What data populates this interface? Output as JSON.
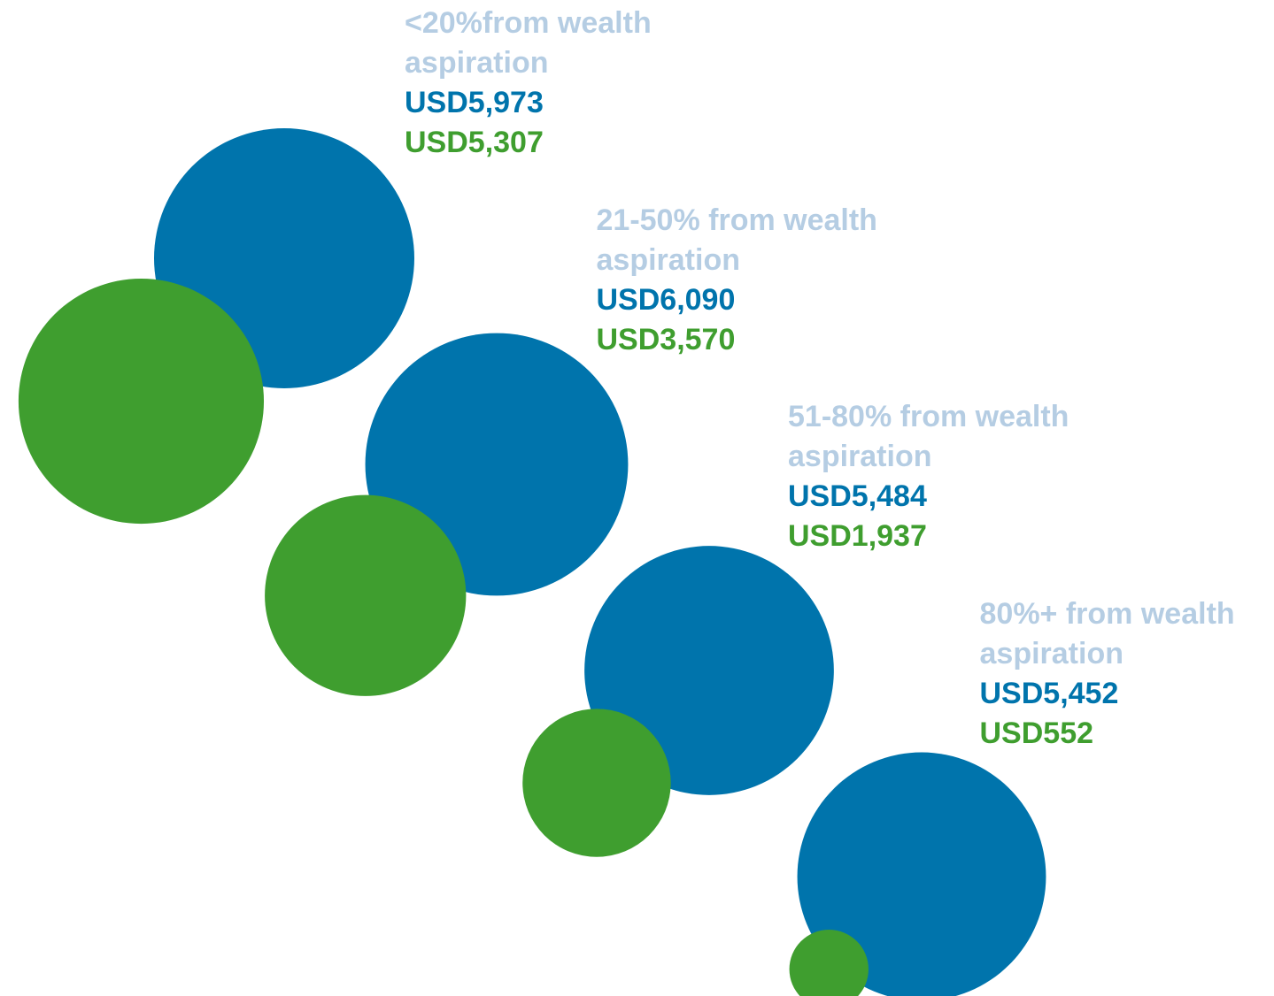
{
  "chart_data": {
    "type": "bubble",
    "categories": [
      "<20%from wealth aspiration",
      "21-50% from wealth aspiration",
      "51-80% from wealth aspiration",
      "80%+ from wealth aspiration"
    ],
    "series": [
      {
        "color": "#0074ac",
        "values": [
          5973,
          6090,
          5484,
          5452
        ],
        "value_labels": [
          "USD5,973",
          "USD6,090",
          "USD5,484",
          "USD5,452"
        ]
      },
      {
        "color": "#3f9e2f",
        "values": [
          5307,
          3570,
          1937,
          552
        ],
        "value_labels": [
          "USD5,307",
          "USD3,570",
          "USD1,937",
          "USD552"
        ]
      }
    ],
    "label_color": "#b5cde3"
  }
}
